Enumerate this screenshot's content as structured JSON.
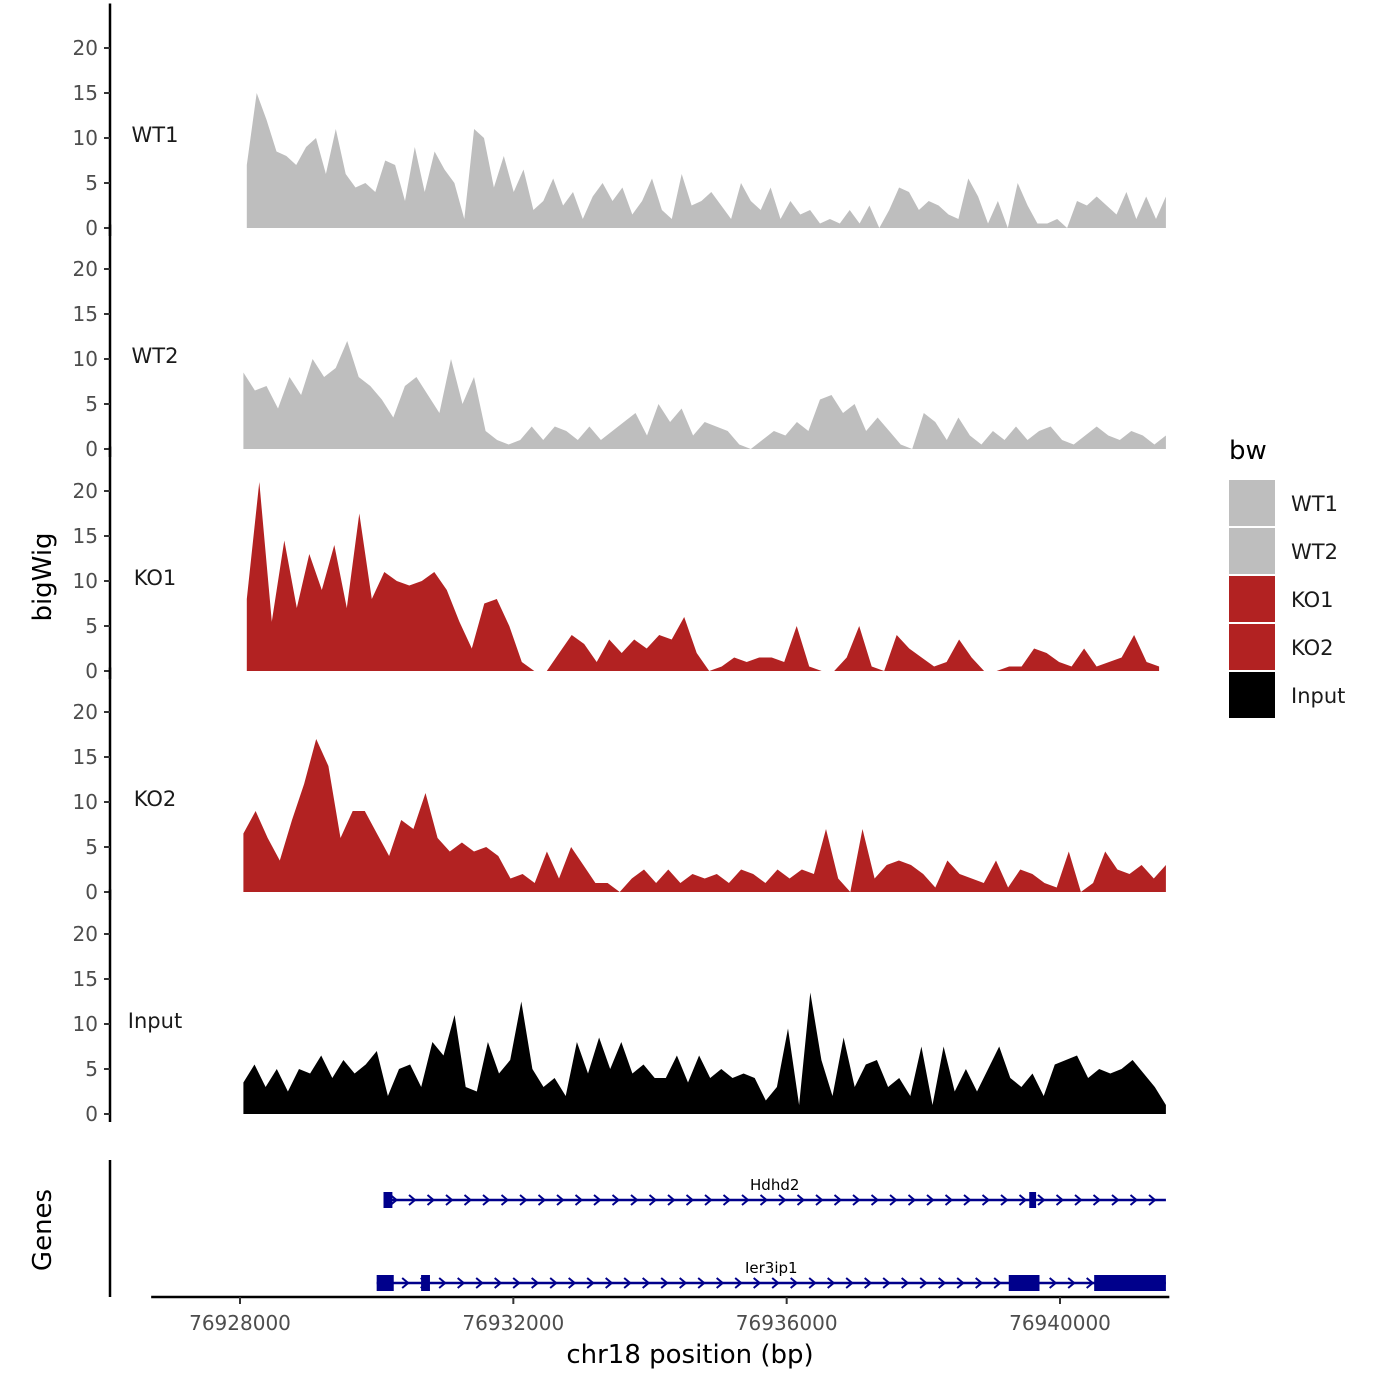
{
  "chart_data": {
    "type": "area",
    "title": "",
    "xlabel": "chr18 position (bp)",
    "ylabel": "bigWig",
    "genes_label": "Genes",
    "xlim": [
      76926700,
      76941600
    ],
    "ylim": [
      0,
      22
    ],
    "x_ticks": [
      76928000,
      76932000,
      76936000,
      76940000
    ],
    "x_tick_labels": [
      "76928000",
      "76932000",
      "76936000",
      "76940000"
    ],
    "y_ticks": [
      0,
      5,
      10,
      15,
      20
    ],
    "y_tick_labels": [
      "0",
      "5",
      "10",
      "15",
      "20"
    ],
    "legend": {
      "title": "bw",
      "position": "right",
      "entries": [
        {
          "label": "WT1",
          "color": "#bebebe"
        },
        {
          "label": "WT2",
          "color": "#bebebe"
        },
        {
          "label": "KO1",
          "color": "#b22222"
        },
        {
          "label": "KO2",
          "color": "#b22222"
        },
        {
          "label": "Input",
          "color": "#000000"
        }
      ]
    },
    "series": [
      {
        "name": "WT1",
        "color": "#bebebe",
        "x_start": 76928100,
        "x_end": 76941550,
        "values": [
          7,
          15,
          12,
          8.5,
          8,
          7,
          9,
          10,
          6,
          11,
          6,
          4.5,
          5,
          4,
          7.5,
          7,
          3,
          9,
          4,
          8.5,
          6.5,
          5,
          1,
          11,
          10,
          4.5,
          8,
          4,
          6.5,
          2,
          3,
          5.5,
          2.5,
          4,
          1,
          3.5,
          5,
          3,
          4.5,
          1.5,
          3,
          5.5,
          2,
          1,
          6,
          2.5,
          3,
          4,
          2.5,
          1,
          5,
          3,
          2,
          4.5,
          1,
          3,
          1.5,
          2,
          0.5,
          1,
          0.5,
          2,
          0.5,
          2.5,
          0,
          2,
          4.5,
          4,
          2,
          3,
          2.5,
          1.5,
          1,
          5.5,
          3.5,
          0.5,
          3,
          0,
          5,
          2.5,
          0.5,
          0.5,
          1,
          0,
          3,
          2.5,
          3.5,
          2.5,
          1.5,
          4,
          1,
          3.5,
          1,
          3.5
        ]
      },
      {
        "name": "WT2",
        "color": "#bebebe",
        "x_start": 76928050,
        "x_end": 76941550,
        "values": [
          8.5,
          6.5,
          7,
          4.5,
          8,
          6,
          10,
          8,
          9,
          12,
          8,
          7,
          5.5,
          3.5,
          7,
          8,
          6,
          4,
          10,
          5,
          8,
          2,
          1,
          0.5,
          1,
          2.5,
          1,
          2.5,
          2,
          1,
          2.5,
          1,
          2,
          3,
          4,
          1.5,
          5,
          3,
          4.5,
          1.5,
          3,
          2.5,
          2,
          0.5,
          0,
          1,
          2,
          1.5,
          3,
          2,
          5.5,
          6,
          4,
          5,
          2,
          3.5,
          2,
          0.5,
          0,
          4,
          3,
          1,
          3.5,
          1.5,
          0.5,
          2,
          1,
          2.5,
          1,
          2,
          2.5,
          1,
          0.5,
          1.5,
          2.5,
          1.5,
          1,
          2,
          1.5,
          0.5,
          1.5
        ]
      },
      {
        "name": "KO1",
        "color": "#b22222",
        "x_start": 76928100,
        "x_end": 76941450,
        "values": [
          8,
          21,
          5.5,
          14.5,
          7,
          13,
          9,
          14,
          7,
          17.5,
          8,
          11,
          10,
          9.5,
          10,
          11,
          9,
          5.5,
          2.5,
          7.5,
          8,
          5,
          1,
          0,
          0,
          2,
          4,
          3,
          1,
          3.5,
          2,
          3.5,
          2.5,
          4,
          3.5,
          6,
          2,
          0,
          0.5,
          1.5,
          1,
          1.5,
          1.5,
          1,
          5,
          0.5,
          0,
          0,
          1.5,
          5,
          0.5,
          0,
          4,
          2.5,
          1.5,
          0.5,
          1,
          3.5,
          1.5,
          0,
          0,
          0.5,
          0.5,
          2.5,
          2,
          1,
          0.5,
          2.5,
          0.5,
          1,
          1.5,
          4,
          1,
          0.5
        ]
      },
      {
        "name": "KO2",
        "color": "#b22222",
        "x_start": 76928050,
        "x_end": 76941550,
        "values": [
          6.5,
          9,
          6,
          3.5,
          8,
          12,
          17,
          14,
          6,
          9,
          9,
          6.5,
          4,
          8,
          7,
          11,
          6,
          4.5,
          5.5,
          4.5,
          5,
          4,
          1.5,
          2,
          1,
          4.5,
          1.5,
          5,
          3,
          1,
          1,
          0,
          1.5,
          2.5,
          1,
          2.5,
          1,
          2,
          1.5,
          2,
          1,
          2.5,
          2,
          1,
          2.5,
          1.5,
          2.5,
          2,
          7,
          1.5,
          0,
          7,
          1.5,
          3,
          3.5,
          3,
          2,
          0.5,
          3.5,
          2,
          1.5,
          1,
          3.5,
          0.5,
          2.5,
          2,
          1,
          0.5,
          4.5,
          0,
          1,
          4.5,
          2.5,
          2,
          3,
          1.5,
          3
        ]
      },
      {
        "name": "Input",
        "color": "#000000",
        "x_start": 76928050,
        "x_end": 76941550,
        "values": [
          3.5,
          5.5,
          3,
          5,
          2.5,
          5,
          4.5,
          6.5,
          4,
          6,
          4.5,
          5.5,
          7,
          2,
          5,
          5.5,
          3,
          8,
          6.5,
          11,
          3,
          2.5,
          8,
          4.5,
          6,
          12.5,
          5,
          3,
          4,
          2,
          8,
          4.5,
          8.5,
          5,
          8,
          4.5,
          5.5,
          4,
          4,
          6.5,
          3.5,
          6.5,
          4,
          5,
          4,
          4.5,
          4,
          1.5,
          3,
          9.5,
          1,
          13.5,
          6,
          2,
          8.5,
          3,
          5.5,
          6,
          3,
          4,
          2,
          7.5,
          1,
          7.5,
          2.5,
          5,
          2.5,
          5,
          7.5,
          4,
          3,
          4.5,
          2,
          5.5,
          6,
          6.5,
          4,
          5,
          4.5,
          5,
          6,
          4.5,
          3,
          1
        ]
      }
    ],
    "genes": [
      {
        "name": "Hdhd2",
        "strand": "+",
        "start": 76930100,
        "end": 76941550,
        "exons": [
          [
            76930100,
            76930230
          ],
          [
            76939550,
            76939650
          ]
        ]
      },
      {
        "name": "Ier3ip1",
        "strand": "+",
        "start": 76930000,
        "end": 76941550,
        "exons": [
          [
            76930000,
            76930250
          ],
          [
            76930650,
            76930780
          ],
          [
            76939250,
            76939700
          ],
          [
            76940500,
            76941550
          ]
        ]
      }
    ]
  }
}
